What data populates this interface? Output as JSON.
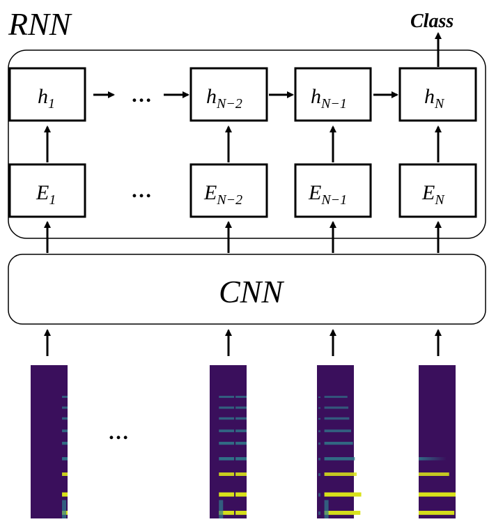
{
  "rnn_label": "RNN",
  "cnn_label": "CNN",
  "output_label": "Class",
  "ellipsis": "…",
  "hidden_states": [
    {
      "base": "h",
      "sub": "1"
    },
    {
      "base": "h",
      "sub": "N−2"
    },
    {
      "base": "h",
      "sub": "N−1"
    },
    {
      "base": "h",
      "sub": "N"
    }
  ],
  "embeddings": [
    {
      "base": "E",
      "sub": "1"
    },
    {
      "base": "E",
      "sub": "N−2"
    },
    {
      "base": "E",
      "sub": "N−1"
    },
    {
      "base": "E",
      "sub": "N"
    }
  ],
  "spectrograms": [
    {
      "name": "spectrogram-1",
      "colormap": "viridis"
    },
    {
      "name": "spectrogram-n-minus-2",
      "colormap": "viridis"
    },
    {
      "name": "spectrogram-n-minus-1",
      "colormap": "viridis"
    },
    {
      "name": "spectrogram-n",
      "colormap": "viridis"
    }
  ],
  "colors": {
    "spectrogram_background": "#3a0f5c",
    "spectrogram_mid": "#2f7f8e",
    "spectrogram_high": "#d8e21a"
  }
}
